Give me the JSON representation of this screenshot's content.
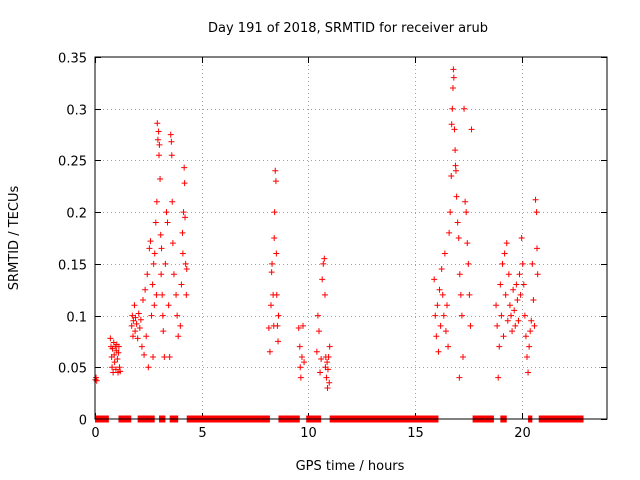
{
  "chart_data": {
    "type": "scatter",
    "title": "Day 191 of 2018, SRMTID for receiver arub",
    "xlabel": "GPS time / hours",
    "ylabel": "SRMTID / TECUs",
    "xlim": [
      0,
      24
    ],
    "ylim": [
      0,
      0.35
    ],
    "grid": true,
    "marker": "plus",
    "color": "#ff0000",
    "x_ticks": [
      {
        "value": 0,
        "label": "0"
      },
      {
        "value": 5,
        "label": "5"
      },
      {
        "value": 10,
        "label": "10"
      },
      {
        "value": 15,
        "label": "15"
      },
      {
        "value": 20,
        "label": "20"
      }
    ],
    "y_ticks": [
      {
        "value": 0,
        "label": "0"
      },
      {
        "value": 0.05,
        "label": "0.05"
      },
      {
        "value": 0.1,
        "label": "0.1"
      },
      {
        "value": 0.15,
        "label": "0.15"
      },
      {
        "value": 0.2,
        "label": "0.2"
      },
      {
        "value": 0.25,
        "label": "0.25"
      },
      {
        "value": 0.3,
        "label": "0.3"
      },
      {
        "value": 0.35,
        "label": "0.35"
      }
    ],
    "zero_segments": [
      [
        0.0,
        0.65
      ],
      [
        1.1,
        1.7
      ],
      [
        2.0,
        2.8
      ],
      [
        3.0,
        3.3
      ],
      [
        3.5,
        3.9
      ],
      [
        4.3,
        8.2
      ],
      [
        8.6,
        9.6
      ],
      [
        9.9,
        10.6
      ],
      [
        11.0,
        16.1
      ],
      [
        17.7,
        18.7
      ],
      [
        19.0,
        19.3
      ],
      [
        20.3,
        20.5
      ],
      [
        20.8,
        22.9
      ]
    ],
    "points": [
      [
        0.02,
        0.038
      ],
      [
        0.05,
        0.04
      ],
      [
        0.08,
        0.037
      ],
      [
        0.72,
        0.078
      ],
      [
        0.75,
        0.07
      ],
      [
        0.78,
        0.06
      ],
      [
        0.8,
        0.05
      ],
      [
        0.82,
        0.068
      ],
      [
        0.85,
        0.045
      ],
      [
        0.88,
        0.074
      ],
      [
        0.9,
        0.062
      ],
      [
        0.92,
        0.055
      ],
      [
        0.95,
        0.07
      ],
      [
        0.98,
        0.048
      ],
      [
        1.0,
        0.066
      ],
      [
        1.02,
        0.072
      ],
      [
        1.05,
        0.058
      ],
      [
        1.08,
        0.045
      ],
      [
        1.1,
        0.064
      ],
      [
        1.12,
        0.07
      ],
      [
        1.15,
        0.05
      ],
      [
        1.18,
        0.046
      ],
      [
        1.72,
        0.09
      ],
      [
        1.75,
        0.1
      ],
      [
        1.78,
        0.08
      ],
      [
        1.8,
        0.095
      ],
      [
        1.85,
        0.11
      ],
      [
        1.88,
        0.085
      ],
      [
        1.9,
        0.098
      ],
      [
        1.95,
        0.092
      ],
      [
        2.0,
        0.078
      ],
      [
        2.05,
        0.102
      ],
      [
        2.1,
        0.088
      ],
      [
        2.15,
        0.096
      ],
      [
        2.2,
        0.07
      ],
      [
        2.25,
        0.115
      ],
      [
        2.3,
        0.062
      ],
      [
        2.35,
        0.125
      ],
      [
        2.4,
        0.08
      ],
      [
        2.45,
        0.14
      ],
      [
        2.5,
        0.05
      ],
      [
        2.55,
        0.165
      ],
      [
        2.6,
        0.172
      ],
      [
        2.65,
        0.1
      ],
      [
        2.7,
        0.13
      ],
      [
        2.72,
        0.06
      ],
      [
        2.75,
        0.15
      ],
      [
        2.78,
        0.11
      ],
      [
        2.8,
        0.16
      ],
      [
        2.85,
        0.19
      ],
      [
        2.88,
        0.12
      ],
      [
        2.9,
        0.21
      ],
      [
        2.92,
        0.286
      ],
      [
        2.95,
        0.27
      ],
      [
        2.98,
        0.278
      ],
      [
        3.0,
        0.255
      ],
      [
        3.02,
        0.265
      ],
      [
        3.05,
        0.232
      ],
      [
        3.08,
        0.178
      ],
      [
        3.1,
        0.14
      ],
      [
        3.12,
        0.165
      ],
      [
        3.15,
        0.12
      ],
      [
        3.18,
        0.1
      ],
      [
        3.2,
        0.085
      ],
      [
        3.25,
        0.06
      ],
      [
        3.3,
        0.15
      ],
      [
        3.35,
        0.2
      ],
      [
        3.4,
        0.19
      ],
      [
        3.45,
        0.11
      ],
      [
        3.5,
        0.06
      ],
      [
        3.55,
        0.275
      ],
      [
        3.58,
        0.268
      ],
      [
        3.6,
        0.255
      ],
      [
        3.62,
        0.21
      ],
      [
        3.65,
        0.17
      ],
      [
        3.7,
        0.14
      ],
      [
        3.8,
        0.12
      ],
      [
        3.85,
        0.1
      ],
      [
        3.9,
        0.08
      ],
      [
        4.0,
        0.09
      ],
      [
        4.05,
        0.13
      ],
      [
        4.1,
        0.18
      ],
      [
        4.12,
        0.16
      ],
      [
        4.15,
        0.2
      ],
      [
        4.18,
        0.243
      ],
      [
        4.2,
        0.228
      ],
      [
        4.22,
        0.195
      ],
      [
        4.25,
        0.15
      ],
      [
        4.28,
        0.12
      ],
      [
        4.3,
        0.145
      ],
      [
        8.15,
        0.088
      ],
      [
        8.2,
        0.065
      ],
      [
        8.25,
        0.11
      ],
      [
        8.28,
        0.142
      ],
      [
        8.3,
        0.15
      ],
      [
        8.35,
        0.12
      ],
      [
        8.38,
        0.09
      ],
      [
        8.4,
        0.175
      ],
      [
        8.42,
        0.2
      ],
      [
        8.45,
        0.24
      ],
      [
        8.48,
        0.23
      ],
      [
        8.5,
        0.16
      ],
      [
        8.52,
        0.12
      ],
      [
        8.55,
        0.09
      ],
      [
        8.58,
        0.075
      ],
      [
        8.6,
        0.1
      ],
      [
        9.55,
        0.088
      ],
      [
        9.6,
        0.07
      ],
      [
        9.62,
        0.05
      ],
      [
        9.65,
        0.04
      ],
      [
        9.7,
        0.06
      ],
      [
        9.75,
        0.09
      ],
      [
        9.8,
        0.055
      ],
      [
        10.4,
        0.065
      ],
      [
        10.45,
        0.1
      ],
      [
        10.5,
        0.085
      ],
      [
        10.55,
        0.045
      ],
      [
        10.6,
        0.058
      ],
      [
        10.65,
        0.135
      ],
      [
        10.7,
        0.15
      ],
      [
        10.75,
        0.155
      ],
      [
        10.78,
        0.12
      ],
      [
        10.8,
        0.05
      ],
      [
        10.82,
        0.06
      ],
      [
        10.85,
        0.04
      ],
      [
        10.88,
        0.055
      ],
      [
        10.9,
        0.03
      ],
      [
        10.92,
        0.048
      ],
      [
        10.95,
        0.06
      ],
      [
        10.98,
        0.035
      ],
      [
        11.0,
        0.07
      ],
      [
        15.9,
        0.135
      ],
      [
        15.95,
        0.1
      ],
      [
        16.0,
        0.08
      ],
      [
        16.05,
        0.11
      ],
      [
        16.1,
        0.065
      ],
      [
        16.15,
        0.125
      ],
      [
        16.2,
        0.09
      ],
      [
        16.25,
        0.145
      ],
      [
        16.3,
        0.12
      ],
      [
        16.35,
        0.1
      ],
      [
        16.4,
        0.16
      ],
      [
        16.45,
        0.085
      ],
      [
        16.5,
        0.11
      ],
      [
        16.55,
        0.07
      ],
      [
        16.6,
        0.18
      ],
      [
        16.65,
        0.2
      ],
      [
        16.7,
        0.235
      ],
      [
        16.72,
        0.285
      ],
      [
        16.75,
        0.3
      ],
      [
        16.78,
        0.32
      ],
      [
        16.8,
        0.338
      ],
      [
        16.82,
        0.33
      ],
      [
        16.85,
        0.28
      ],
      [
        16.88,
        0.26
      ],
      [
        16.9,
        0.245
      ],
      [
        16.92,
        0.24
      ],
      [
        16.95,
        0.215
      ],
      [
        17.0,
        0.19
      ],
      [
        17.05,
        0.175
      ],
      [
        17.08,
        0.04
      ],
      [
        17.1,
        0.14
      ],
      [
        17.15,
        0.12
      ],
      [
        17.2,
        0.1
      ],
      [
        17.25,
        0.06
      ],
      [
        17.3,
        0.3
      ],
      [
        17.35,
        0.21
      ],
      [
        17.4,
        0.2
      ],
      [
        17.45,
        0.17
      ],
      [
        17.5,
        0.15
      ],
      [
        17.55,
        0.12
      ],
      [
        17.6,
        0.09
      ],
      [
        17.65,
        0.28
      ],
      [
        18.8,
        0.11
      ],
      [
        18.85,
        0.09
      ],
      [
        18.9,
        0.04
      ],
      [
        18.95,
        0.07
      ],
      [
        19.0,
        0.13
      ],
      [
        19.05,
        0.1
      ],
      [
        19.1,
        0.15
      ],
      [
        19.15,
        0.08
      ],
      [
        19.2,
        0.16
      ],
      [
        19.25,
        0.12
      ],
      [
        19.3,
        0.17
      ],
      [
        19.35,
        0.095
      ],
      [
        19.4,
        0.14
      ],
      [
        19.45,
        0.11
      ],
      [
        19.5,
        0.1
      ],
      [
        19.55,
        0.085
      ],
      [
        19.6,
        0.125
      ],
      [
        19.65,
        0.105
      ],
      [
        19.7,
        0.09
      ],
      [
        19.75,
        0.13
      ],
      [
        19.8,
        0.115
      ],
      [
        19.85,
        0.095
      ],
      [
        19.9,
        0.14
      ],
      [
        19.95,
        0.12
      ],
      [
        20.0,
        0.175
      ],
      [
        20.05,
        0.15
      ],
      [
        20.1,
        0.13
      ],
      [
        20.15,
        0.1
      ],
      [
        20.2,
        0.08
      ],
      [
        20.25,
        0.06
      ],
      [
        20.3,
        0.045
      ],
      [
        20.35,
        0.07
      ],
      [
        20.4,
        0.085
      ],
      [
        20.45,
        0.095
      ],
      [
        20.5,
        0.15
      ],
      [
        20.55,
        0.115
      ],
      [
        20.6,
        0.09
      ],
      [
        20.65,
        0.212
      ],
      [
        20.7,
        0.2
      ],
      [
        20.72,
        0.165
      ],
      [
        20.75,
        0.14
      ]
    ]
  }
}
